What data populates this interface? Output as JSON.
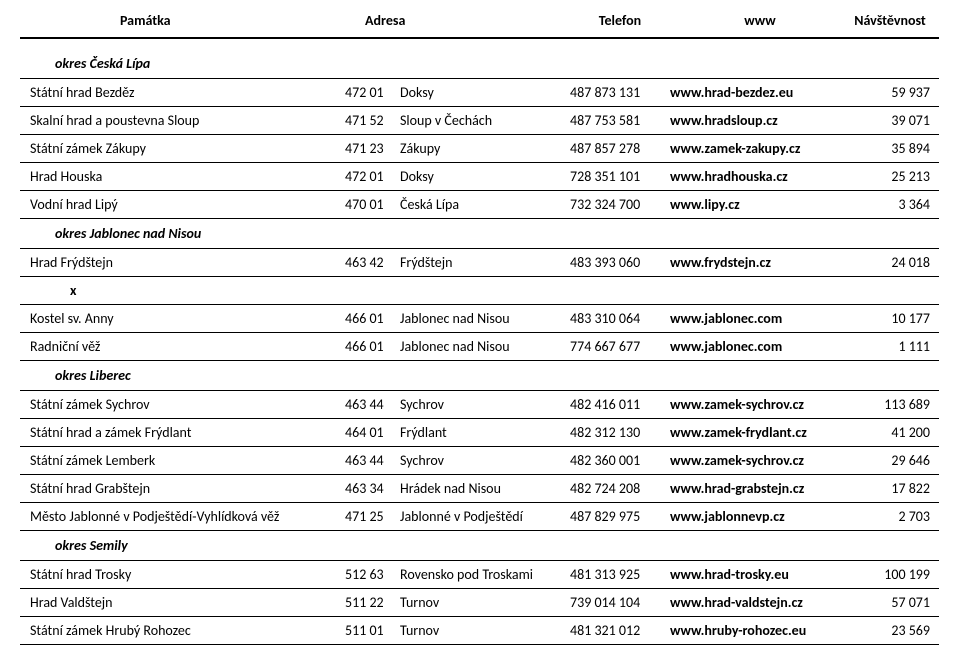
{
  "columns": {
    "name": "Památka",
    "address": "Adresa",
    "phone": "Telefon",
    "www": "www",
    "visits": "Návštěvnost"
  },
  "sections": [
    {
      "title": "okres Česká Lípa",
      "rows": [
        {
          "name": "Státní hrad Bezděz",
          "psc": "472 01",
          "city": "Doksy",
          "phone": "487 873 131",
          "www": "www.hrad-bezdez.eu",
          "visits": "59 937"
        },
        {
          "name": "Skalní hrad a poustevna Sloup",
          "psc": "471 52",
          "city": "Sloup v Čechách",
          "phone": "487 753 581",
          "www": "www.hradsloup.cz",
          "visits": "39 071"
        },
        {
          "name": "Státní zámek Zákupy",
          "psc": "471 23",
          "city": "Zákupy",
          "phone": "487 857 278",
          "www": "www.zamek-zakupy.cz",
          "visits": "35 894"
        },
        {
          "name": "Hrad Houska",
          "psc": "472 01",
          "city": "Doksy",
          "phone": "728 351 101",
          "www": "www.hradhouska.cz",
          "visits": "25 213"
        },
        {
          "name": "Vodní hrad Lipý",
          "psc": "470 01",
          "city": "Česká Lípa",
          "phone": "732 324 700",
          "www": "www.lipy.cz",
          "visits": "3 364"
        }
      ]
    },
    {
      "title": "okres Jablonec nad Nisou",
      "rows": [
        {
          "name": "Hrad Frýdštejn",
          "psc": "463 42",
          "city": "Frýdštejn",
          "phone": "483 393 060",
          "www": "www.frydstejn.cz",
          "visits": "24 018"
        }
      ],
      "afterX": true,
      "rowsAfter": [
        {
          "name": "Kostel sv. Anny",
          "psc": "466 01",
          "city": "Jablonec nad Nisou",
          "phone": "483 310 064",
          "www": "www.jablonec.com",
          "visits": "10 177"
        },
        {
          "name": "Radniční věž",
          "psc": "466 01",
          "city": "Jablonec nad Nisou",
          "phone": "774 667 677",
          "www": "www.jablonec.com",
          "visits": "1 111"
        }
      ]
    },
    {
      "title": "okres Liberec",
      "rows": [
        {
          "name": "Státní zámek Sychrov",
          "psc": "463 44",
          "city": "Sychrov",
          "phone": "482 416 011",
          "www": "www.zamek-sychrov.cz",
          "visits": "113 689"
        },
        {
          "name": "Státní hrad a zámek Frýdlant",
          "psc": "464 01",
          "city": "Frýdlant",
          "phone": "482 312 130",
          "www": "www.zamek-frydlant.cz",
          "visits": "41 200"
        },
        {
          "name": "Státní zámek Lemberk",
          "psc": "463 44",
          "city": "Sychrov",
          "phone": "482 360 001",
          "www": "www.zamek-sychrov.cz",
          "visits": "29 646"
        },
        {
          "name": "Státní hrad Grabštejn",
          "psc": "463 34",
          "city": "Hrádek nad Nisou",
          "phone": "482 724 208",
          "www": "www.hrad-grabstejn.cz",
          "visits": "17 822"
        },
        {
          "name": "Město Jablonné v Podještědí-Vyhlídková věž",
          "psc": "471 25",
          "city": "Jablonné v Podještědí",
          "phone": "487 829 975",
          "www": "www.jablonnevp.cz",
          "visits": "2 703"
        }
      ]
    },
    {
      "title": "okres Semily",
      "rows": [
        {
          "name": "Státní hrad Trosky",
          "psc": "512 63",
          "city": "Rovensko pod Troskami",
          "phone": "481 313 925",
          "www": "www.hrad-trosky.eu",
          "visits": "100 199"
        },
        {
          "name": "Hrad Valdštejn",
          "psc": "511 22",
          "city": "Turnov",
          "phone": "739 014 104",
          "www": "www.hrad-valdstejn.cz",
          "visits": "57 071"
        },
        {
          "name": "Státní zámek Hrubý Rohozec",
          "psc": "511 01",
          "city": "Turnov",
          "phone": "481 321 012",
          "www": "www.hruby-rohozec.eu",
          "visits": "23 569"
        }
      ]
    }
  ],
  "xMarker": "x"
}
